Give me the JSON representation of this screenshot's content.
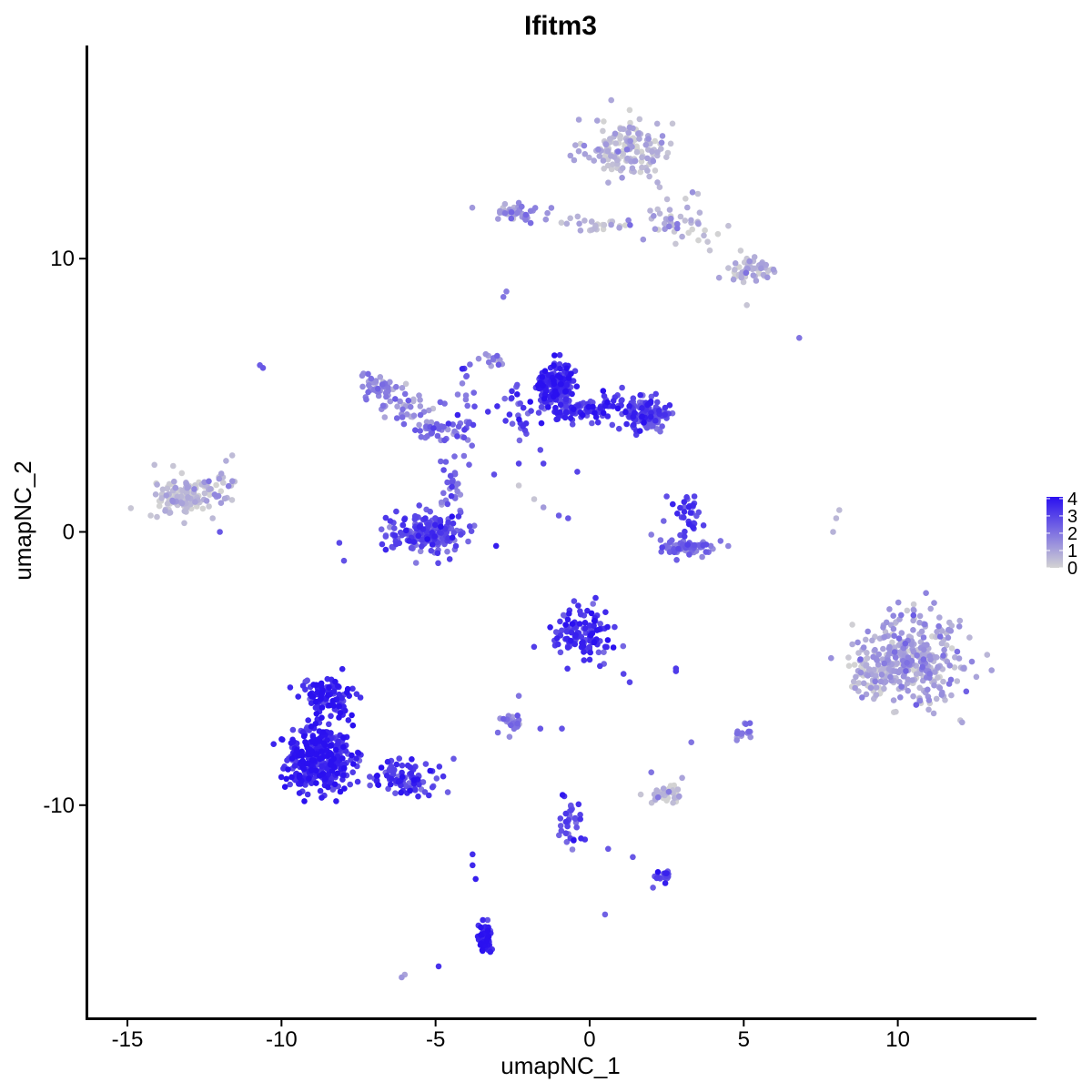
{
  "chart_data": {
    "type": "scatter",
    "title": "Ifitm3",
    "xlabel": "umapNC_1",
    "ylabel": "umapNC_2",
    "xlim": [
      -16.3,
      14.5
    ],
    "ylim": [
      -17.8,
      17.8
    ],
    "x_ticks": [
      -15,
      -10,
      -5,
      0,
      5,
      10
    ],
    "x_tick_labels": [
      "-15",
      "-10",
      "-5",
      "0",
      "5",
      "10"
    ],
    "y_ticks": [
      -10,
      0,
      10
    ],
    "y_tick_labels": [
      "-10",
      "0",
      "10"
    ],
    "color_scale": {
      "low": "#d3d3d3",
      "high": "#2a10f0",
      "min": 0,
      "max": 4.1
    },
    "legend": {
      "ticks": [
        0,
        1,
        2,
        3,
        4
      ],
      "tick_labels": [
        "0",
        "1",
        "2",
        "3",
        "4"
      ],
      "position": "right"
    },
    "grid": false,
    "clusters": [
      {
        "x": 1.3,
        "y": 14.0,
        "sx": 1.1,
        "sy": 0.9,
        "n": 160,
        "expr": 0.5
      },
      {
        "x": 2.8,
        "y": 11.4,
        "sx": 1.0,
        "sy": 0.8,
        "n": 50,
        "expr": 0.8
      },
      {
        "x": 5.3,
        "y": 9.6,
        "sx": 0.6,
        "sy": 0.4,
        "n": 55,
        "expr": 0.6
      },
      {
        "x": -2.3,
        "y": 11.7,
        "sx": 0.9,
        "sy": 0.25,
        "n": 45,
        "expr": 1.3
      },
      {
        "x": 0.4,
        "y": 11.2,
        "sx": 0.9,
        "sy": 0.25,
        "n": 25,
        "expr": 0.7
      },
      {
        "x": -6.9,
        "y": 5.3,
        "sx": 0.5,
        "sy": 0.45,
        "n": 45,
        "expr": 1.5
      },
      {
        "x": -5.6,
        "y": 4.5,
        "sx": 0.9,
        "sy": 0.45,
        "n": 35,
        "expr": 1.3
      },
      {
        "x": -5.0,
        "y": 3.7,
        "sx": 0.6,
        "sy": 0.3,
        "n": 35,
        "expr": 2.0
      },
      {
        "x": -4.0,
        "y": 4.4,
        "sx": 0.25,
        "sy": 1.6,
        "n": 25,
        "expr": 2.5
      },
      {
        "x": -1.1,
        "y": 5.5,
        "sx": 0.45,
        "sy": 0.6,
        "n": 150,
        "expr": 3.5
      },
      {
        "x": -0.2,
        "y": 4.5,
        "sx": 1.5,
        "sy": 0.45,
        "n": 120,
        "expr": 3.2
      },
      {
        "x": 1.8,
        "y": 4.3,
        "sx": 0.55,
        "sy": 0.5,
        "n": 120,
        "expr": 3.0
      },
      {
        "x": -5.3,
        "y": -0.1,
        "sx": 1.1,
        "sy": 0.55,
        "n": 190,
        "expr": 2.8
      },
      {
        "x": -4.5,
        "y": 1.5,
        "sx": 0.3,
        "sy": 1.1,
        "n": 30,
        "expr": 2.5
      },
      {
        "x": -13.2,
        "y": 1.3,
        "sx": 0.85,
        "sy": 0.7,
        "n": 140,
        "expr": 0.3
      },
      {
        "x": -12.0,
        "y": 1.7,
        "sx": 0.4,
        "sy": 0.6,
        "n": 15,
        "expr": 0.8
      },
      {
        "x": 3.2,
        "y": -0.6,
        "sx": 0.8,
        "sy": 0.3,
        "n": 65,
        "expr": 2.1
      },
      {
        "x": 3.2,
        "y": 0.6,
        "sx": 0.3,
        "sy": 0.5,
        "n": 30,
        "expr": 3.0
      },
      {
        "x": -0.3,
        "y": -3.7,
        "sx": 0.8,
        "sy": 0.8,
        "n": 120,
        "expr": 3.3
      },
      {
        "x": 10.5,
        "y": -4.7,
        "sx": 1.3,
        "sy": 1.4,
        "n": 340,
        "expr": 1.0
      },
      {
        "x": 9.2,
        "y": -5.2,
        "sx": 0.6,
        "sy": 0.8,
        "n": 60,
        "expr": 0.3
      },
      {
        "x": -8.8,
        "y": -8.3,
        "sx": 0.9,
        "sy": 0.9,
        "n": 350,
        "expr": 3.6
      },
      {
        "x": -8.5,
        "y": -6.0,
        "sx": 0.7,
        "sy": 0.6,
        "n": 100,
        "expr": 3.6
      },
      {
        "x": -6.0,
        "y": -9.0,
        "sx": 1.0,
        "sy": 0.5,
        "n": 90,
        "expr": 3.2
      },
      {
        "x": -2.6,
        "y": -6.9,
        "sx": 0.3,
        "sy": 0.25,
        "n": 25,
        "expr": 1.7
      },
      {
        "x": 2.5,
        "y": -9.6,
        "sx": 0.5,
        "sy": 0.25,
        "n": 40,
        "expr": 0.4
      },
      {
        "x": 5.0,
        "y": -7.4,
        "sx": 0.2,
        "sy": 0.25,
        "n": 12,
        "expr": 2.0
      },
      {
        "x": -0.6,
        "y": -10.6,
        "sx": 0.3,
        "sy": 0.7,
        "n": 35,
        "expr": 3.0
      },
      {
        "x": 2.3,
        "y": -12.6,
        "sx": 0.3,
        "sy": 0.25,
        "n": 18,
        "expr": 3.2
      },
      {
        "x": -3.4,
        "y": -14.8,
        "sx": 0.2,
        "sy": 0.5,
        "n": 50,
        "expr": 3.9
      },
      {
        "x": -3.1,
        "y": 6.3,
        "sx": 0.3,
        "sy": 0.2,
        "n": 12,
        "expr": 1.8
      },
      {
        "x": -2.5,
        "y": 5.0,
        "sx": 0.2,
        "sy": 0.3,
        "n": 8,
        "expr": 2.6
      },
      {
        "x": -2.2,
        "y": 3.8,
        "sx": 0.2,
        "sy": 0.4,
        "n": 10,
        "expr": 3.0
      }
    ],
    "points": [
      {
        "x": -10.7,
        "y": 6.1,
        "v": 2.5
      },
      {
        "x": -10.6,
        "y": 6.0,
        "v": 2.6
      },
      {
        "x": -2.8,
        "y": 8.6,
        "v": 2.0
      },
      {
        "x": -2.7,
        "y": 8.8,
        "v": 1.8
      },
      {
        "x": 6.8,
        "y": 7.1,
        "v": 2.0
      },
      {
        "x": 5.1,
        "y": 8.3,
        "v": 0.3
      },
      {
        "x": 8.1,
        "y": 0.8,
        "v": 0.5
      },
      {
        "x": 8.0,
        "y": 0.5,
        "v": 0.6
      },
      {
        "x": 7.9,
        "y": 0.0,
        "v": 0.7
      },
      {
        "x": -2.3,
        "y": 1.7,
        "v": 0.2
      },
      {
        "x": -1.8,
        "y": 1.2,
        "v": 0.3
      },
      {
        "x": -1.5,
        "y": 0.9,
        "v": 1.2
      },
      {
        "x": -1.0,
        "y": 0.6,
        "v": 2.5
      },
      {
        "x": -0.7,
        "y": 0.5,
        "v": 2.6
      },
      {
        "x": -3.1,
        "y": 2.1,
        "v": 2.8
      },
      {
        "x": -2.3,
        "y": 2.5,
        "v": 3.0
      },
      {
        "x": -1.6,
        "y": 3.0,
        "v": 2.8
      },
      {
        "x": -1.5,
        "y": 2.5,
        "v": 3.0
      },
      {
        "x": 2.8,
        "y": -5.0,
        "v": 3.2
      },
      {
        "x": 2.8,
        "y": -5.1,
        "v": 3.2
      },
      {
        "x": 1.3,
        "y": -5.5,
        "v": 3.0
      },
      {
        "x": 1.1,
        "y": -5.2,
        "v": 3.0
      },
      {
        "x": -1.6,
        "y": -7.2,
        "v": 2.6
      },
      {
        "x": -0.9,
        "y": -7.2,
        "v": 2.7
      },
      {
        "x": -2.3,
        "y": -6.0,
        "v": 2.0
      },
      {
        "x": -2.6,
        "y": -7.5,
        "v": 1.5
      },
      {
        "x": 3.3,
        "y": -7.7,
        "v": 2.0
      },
      {
        "x": 0.5,
        "y": -14.0,
        "v": 2.4
      },
      {
        "x": -3.8,
        "y": -11.8,
        "v": 3.5
      },
      {
        "x": -3.8,
        "y": -12.2,
        "v": 3.6
      },
      {
        "x": -3.7,
        "y": -12.7,
        "v": 3.8
      },
      {
        "x": -4.9,
        "y": -15.9,
        "v": 3.4
      },
      {
        "x": -6.1,
        "y": -16.3,
        "v": 1.3
      },
      {
        "x": -6.0,
        "y": -16.2,
        "v": 1.0
      },
      {
        "x": 1.4,
        "y": -11.9,
        "v": 2.6
      },
      {
        "x": 0.6,
        "y": -11.6,
        "v": 2.6
      },
      {
        "x": 3.0,
        "y": -9.0,
        "v": 1.0
      },
      {
        "x": 2.0,
        "y": -8.8,
        "v": 2.0
      },
      {
        "x": 5.2,
        "y": -7.0,
        "v": 2.3
      },
      {
        "x": 4.8,
        "y": -7.3,
        "v": 2.0
      },
      {
        "x": 5.1,
        "y": 10.0,
        "v": 0.3
      },
      {
        "x": 4.5,
        "y": 11.2,
        "v": 0.4
      },
      {
        "x": 3.9,
        "y": 10.3,
        "v": 0.3
      },
      {
        "x": 4.2,
        "y": 9.3,
        "v": 1.0
      },
      {
        "x": -0.4,
        "y": 2.2,
        "v": 3.0
      },
      {
        "x": 3.4,
        "y": 1.3,
        "v": 3.0
      },
      {
        "x": 2.5,
        "y": 1.3,
        "v": 2.8
      },
      {
        "x": 2.0,
        "y": -0.1,
        "v": 1.8
      },
      {
        "x": 2.3,
        "y": -0.3,
        "v": 2.0
      },
      {
        "x": 2.4,
        "y": 0.4,
        "v": 2.3
      },
      {
        "x": -11.6,
        "y": 2.8,
        "v": 0.5
      },
      {
        "x": -11.8,
        "y": 2.6,
        "v": 0.8
      },
      {
        "x": -12.0,
        "y": 0.0,
        "v": 2.6
      },
      {
        "x": -11.9,
        "y": 2.0,
        "v": 0.5
      },
      {
        "x": -4.3,
        "y": 3.5,
        "v": 3.0
      },
      {
        "x": -4.0,
        "y": 3.8,
        "v": 2.6
      },
      {
        "x": -3.3,
        "y": 4.4,
        "v": 3.3
      },
      {
        "x": -3.0,
        "y": 4.6,
        "v": 3.5
      },
      {
        "x": 8.4,
        "y": -4.6,
        "v": 0.2
      },
      {
        "x": 12.9,
        "y": -4.5,
        "v": 0.6
      }
    ]
  }
}
